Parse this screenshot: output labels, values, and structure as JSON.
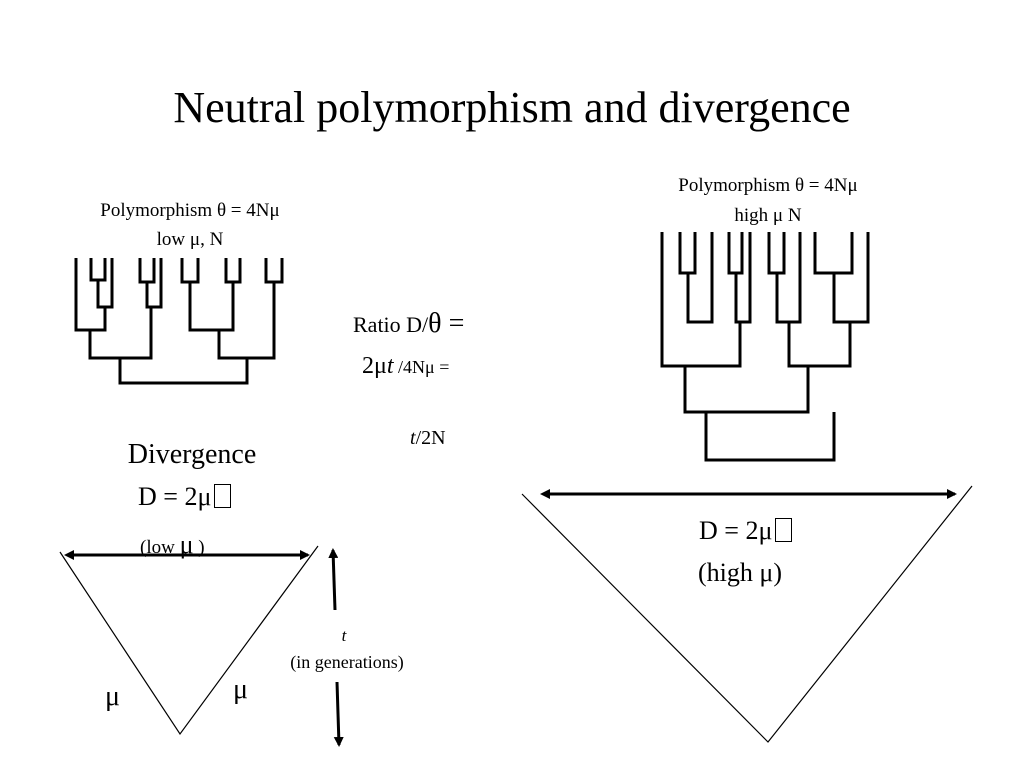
{
  "title": "Neutral  polymorphism and divergence",
  "left_tree": {
    "label_line1": "Polymorphism θ = 4Nμ",
    "label_line2": "low μ, N"
  },
  "right_tree": {
    "label_line1": "Polymorphism θ  = 4Nμ",
    "label_line2": "high μ N"
  },
  "ratio": {
    "line1_prefix": "Ratio D/",
    "line1_symbol": "θ =",
    "line2_prefix": "2μ",
    "line2_t": "t",
    "line2_suffix": " /4Nμ =",
    "line3_t": "t",
    "line3_suffix": "/2N"
  },
  "left_divergence": {
    "heading": "Divergence",
    "formula": "D = 2μ",
    "note_prefix": "(low ",
    "note_mu": "μ",
    "note_suffix": " )",
    "mu_left": "μ",
    "mu_right": "μ"
  },
  "time_axis": {
    "symbol": "t",
    "label": "(in generations)"
  },
  "right_divergence": {
    "formula": "D = 2μ",
    "note": "(high μ)"
  }
}
